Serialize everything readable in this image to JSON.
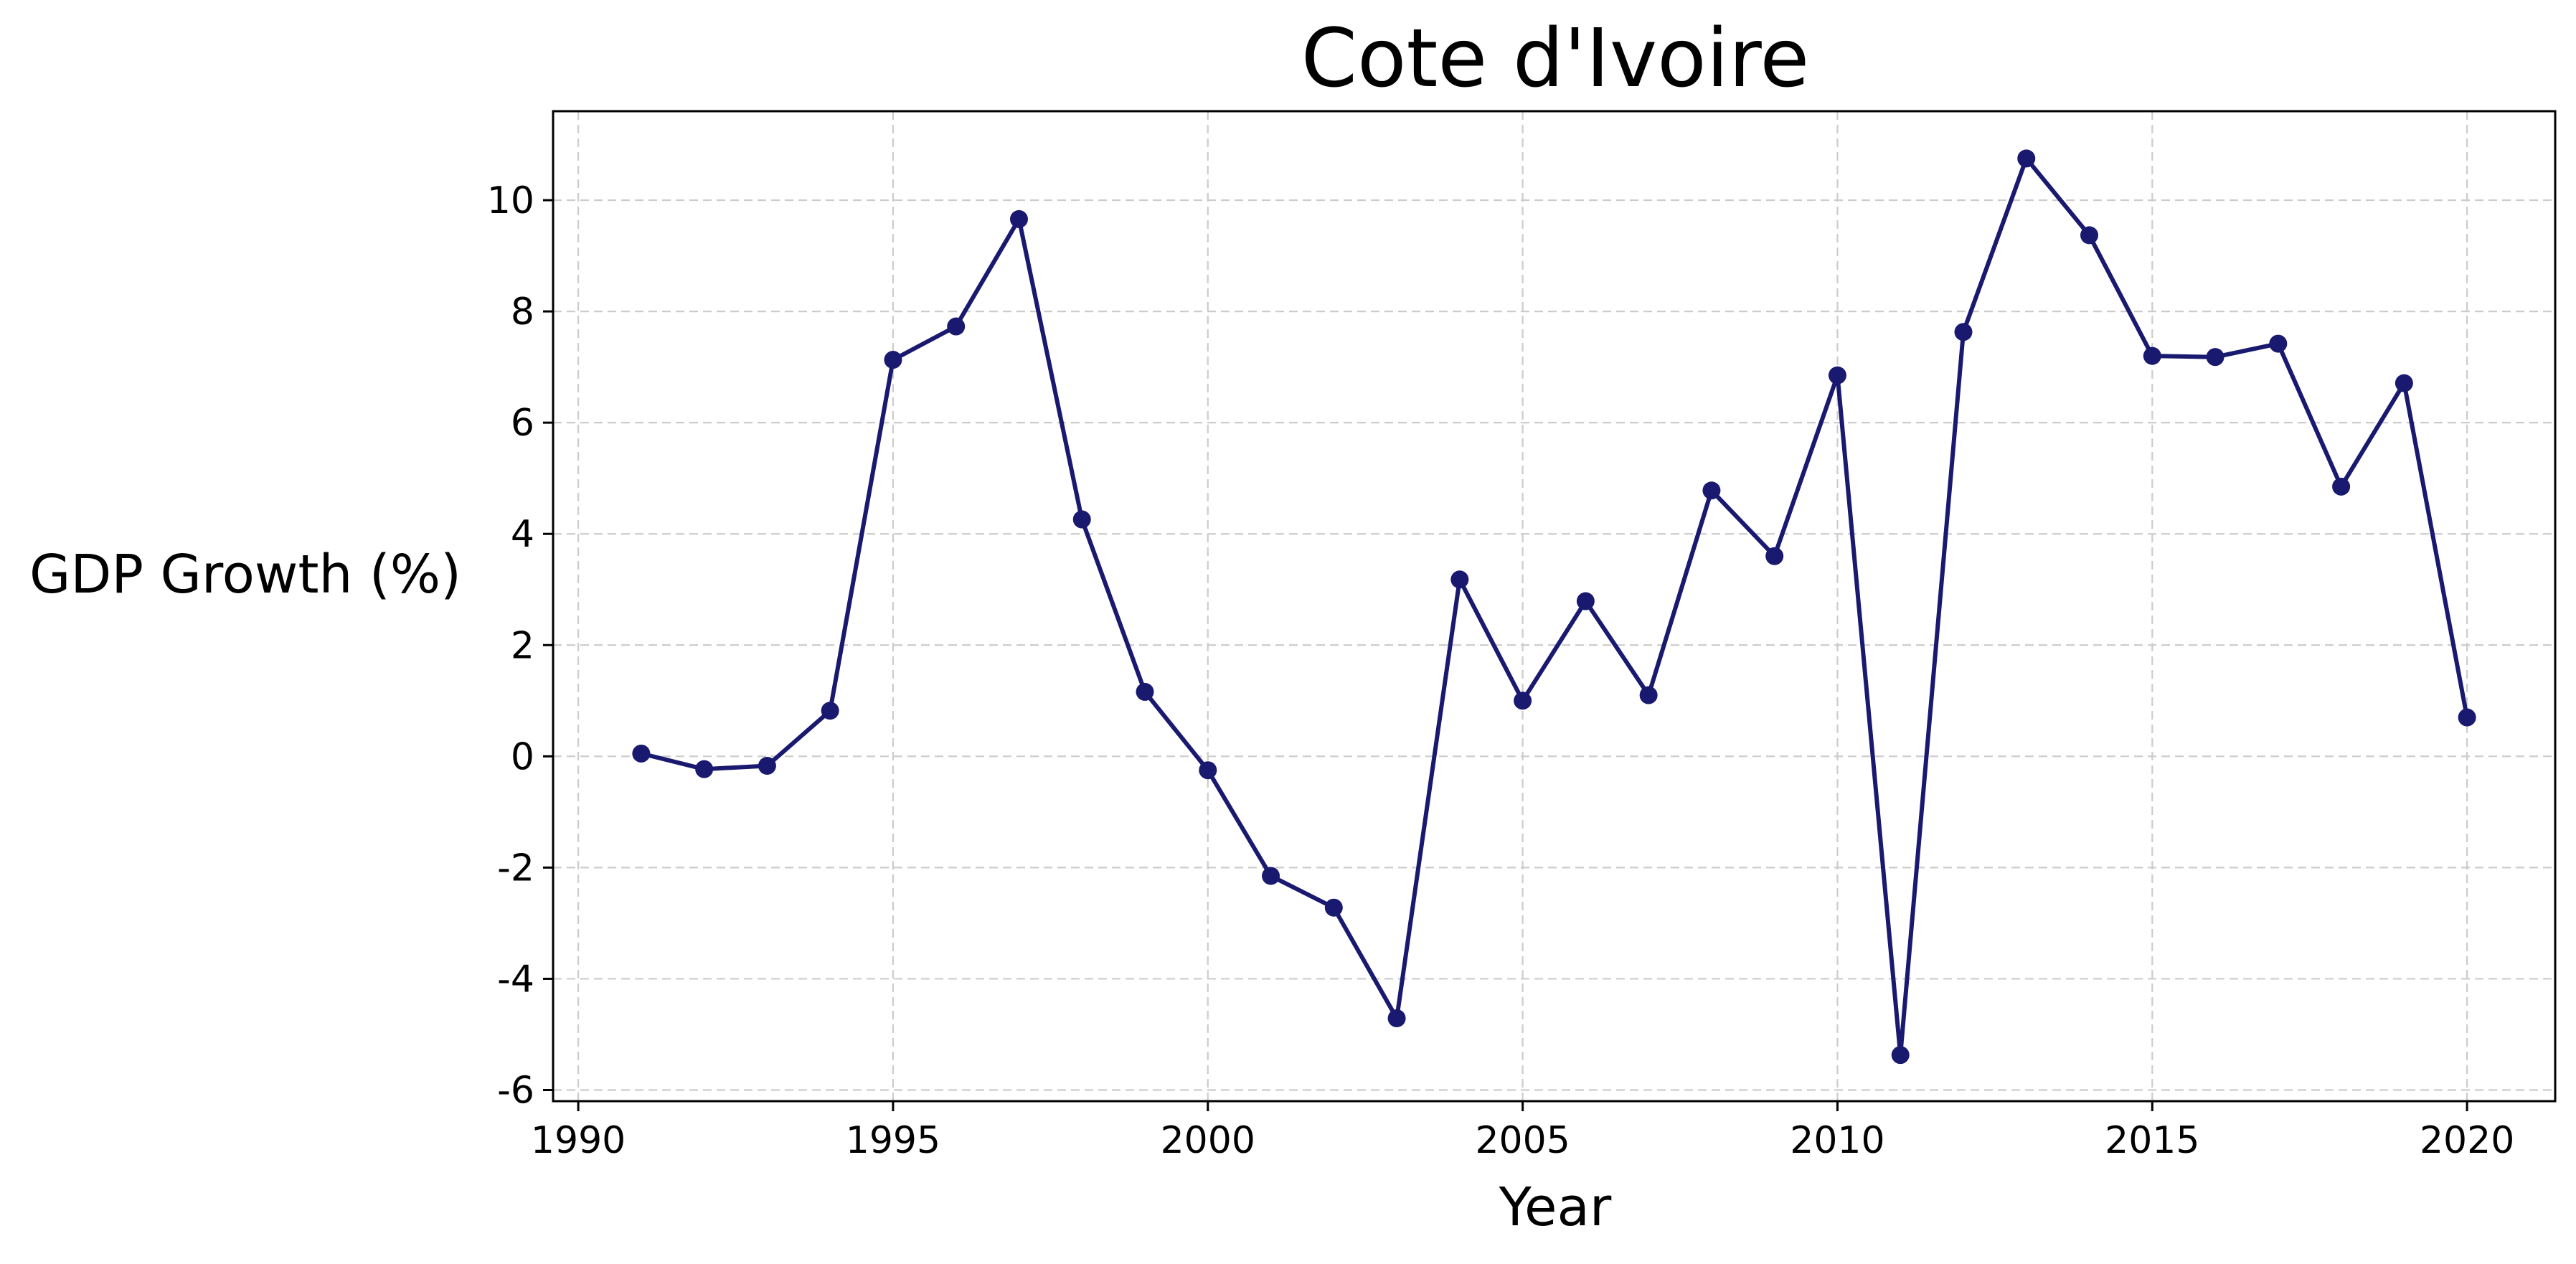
{
  "chart_data": {
    "type": "line",
    "title": "Cote d'Ivoire",
    "xlabel": "Year",
    "ylabel": "GDP Growth (%)",
    "xlim": [
      1989.6,
      2021.4
    ],
    "ylim": [
      -6.2,
      11.6
    ],
    "xticks": [
      1990,
      1995,
      2000,
      2005,
      2010,
      2015,
      2020
    ],
    "yticks": [
      -6,
      -4,
      -2,
      0,
      2,
      4,
      6,
      8,
      10
    ],
    "grid": true,
    "legend": "none",
    "color": "#191970",
    "series": [
      {
        "x": [
          1991,
          1992,
          1993,
          1994,
          1995,
          1996,
          1997,
          1998,
          1999,
          2000,
          2001,
          2002,
          2003,
          2004,
          2005,
          2006,
          2007,
          2008,
          2009,
          2010,
          2011,
          2012,
          2013,
          2014,
          2015,
          2016,
          2017,
          2018,
          2019,
          2020
        ],
        "values": [
          0.05,
          -0.23,
          -0.17,
          0.82,
          7.13,
          7.73,
          9.66,
          4.26,
          1.16,
          -0.25,
          -2.15,
          -2.72,
          -4.71,
          3.18,
          1.0,
          2.79,
          1.1,
          4.78,
          3.6,
          6.85,
          -5.37,
          7.63,
          10.75,
          9.37,
          7.2,
          7.18,
          7.42,
          4.85,
          6.71,
          0.7
        ]
      }
    ]
  }
}
